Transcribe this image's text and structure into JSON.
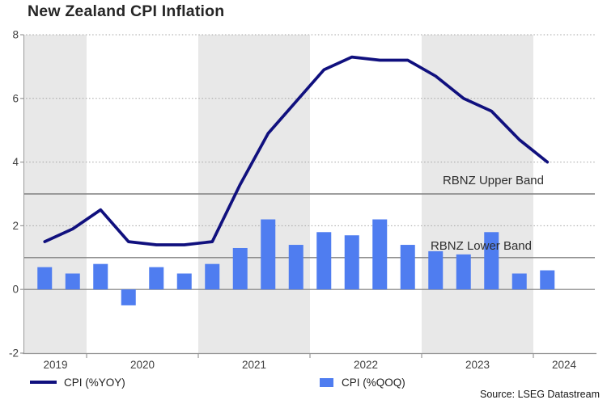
{
  "title": "New Zealand CPI Inflation",
  "source": "Source: LSEG Datastream",
  "legend": [
    {
      "label": "CPI (%YOY)",
      "marker": "line"
    },
    {
      "label": "CPI (%QOQ)",
      "marker": "square"
    }
  ],
  "colors": {
    "line": "#10107E",
    "bar": "#4F7DF0",
    "year_band": "#E8E8E8",
    "dotted_grid": "#A3A3A3",
    "reference_line": "#7F7F7F",
    "axis": "#9A9A9A",
    "tick_label": "#404040"
  },
  "chart_data": {
    "type": "mixed",
    "title": "New Zealand CPI Inflation",
    "x_quarters": [
      "2019 Q3",
      "2019 Q4",
      "2020 Q1",
      "2020 Q2",
      "2020 Q3",
      "2020 Q4",
      "2021 Q1",
      "2021 Q2",
      "2021 Q3",
      "2021 Q4",
      "2022 Q1",
      "2022 Q2",
      "2022 Q3",
      "2022 Q4",
      "2023 Q1",
      "2023 Q2",
      "2023 Q3",
      "2023 Q4",
      "2024 Q1"
    ],
    "series": [
      {
        "name": "CPI (%YOY)",
        "type": "line",
        "values": [
          1.5,
          1.9,
          2.5,
          1.5,
          1.4,
          1.4,
          1.5,
          3.3,
          4.9,
          5.9,
          6.9,
          7.3,
          7.2,
          7.2,
          6.7,
          6.0,
          5.6,
          4.7,
          4.0
        ]
      },
      {
        "name": "CPI (%QOQ)",
        "type": "bar",
        "values": [
          0.7,
          0.5,
          0.8,
          -0.5,
          0.7,
          0.5,
          0.8,
          1.3,
          2.2,
          1.4,
          1.8,
          1.7,
          2.2,
          1.4,
          1.2,
          1.1,
          1.8,
          0.5,
          0.6
        ]
      }
    ],
    "year_labels": [
      "2019",
      "2020",
      "2021",
      "2022",
      "2023",
      "2024"
    ],
    "shaded_year_indices": [
      0,
      2,
      4
    ],
    "ylim": [
      -2,
      8
    ],
    "yticks": [
      -2,
      0,
      2,
      4,
      6,
      8
    ],
    "dotted_gridlines": [
      2,
      4,
      6,
      8
    ],
    "reference_lines": [
      {
        "label": "RBNZ Upper Band",
        "value": 3
      },
      {
        "label": "RBNZ Lower Band",
        "value": 1
      }
    ],
    "legend_position": "bottom",
    "grid": "dotted-horizontal"
  }
}
